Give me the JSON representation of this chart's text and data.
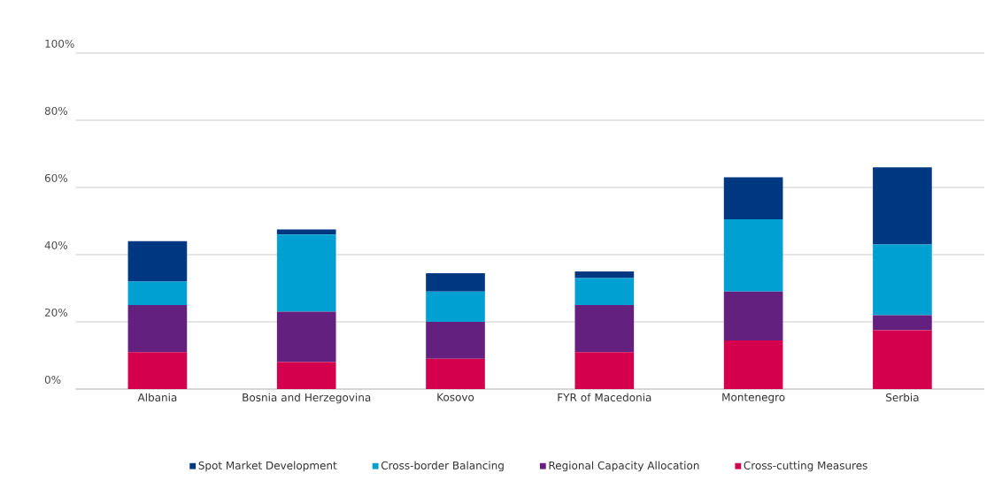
{
  "chart_data": {
    "type": "bar",
    "stacked": true,
    "categories": [
      "Albania",
      "Bosnia and Herzegovina",
      "Kosovo",
      "FYR of Macedonia",
      "Montenegro",
      "Serbia"
    ],
    "series": [
      {
        "name": "Cross-cutting Measures",
        "color": "#d4004e",
        "values": [
          11,
          8,
          9,
          11,
          14.5,
          17.5
        ]
      },
      {
        "name": "Regional Capacity Allocation",
        "color": "#64207e",
        "values": [
          14,
          15,
          11,
          14,
          14.5,
          4.5
        ]
      },
      {
        "name": "Cross-border Balancing",
        "color": "#00a0d2",
        "values": [
          7,
          23,
          9,
          8,
          21.5,
          21
        ]
      },
      {
        "name": "Spot Market Development",
        "color": "#003781",
        "values": [
          12,
          1.5,
          5.5,
          2,
          12.5,
          23
        ]
      }
    ],
    "ylim": [
      0,
      100
    ],
    "yticks": [
      {
        "value": 0,
        "label": "0%"
      },
      {
        "value": 20,
        "label": "20%"
      },
      {
        "value": 40,
        "label": "40%"
      },
      {
        "value": 60,
        "label": "60%"
      },
      {
        "value": 80,
        "label": "80%"
      },
      {
        "value": 100,
        "label": "100%"
      }
    ],
    "grid": "y",
    "legend": "bottom"
  }
}
